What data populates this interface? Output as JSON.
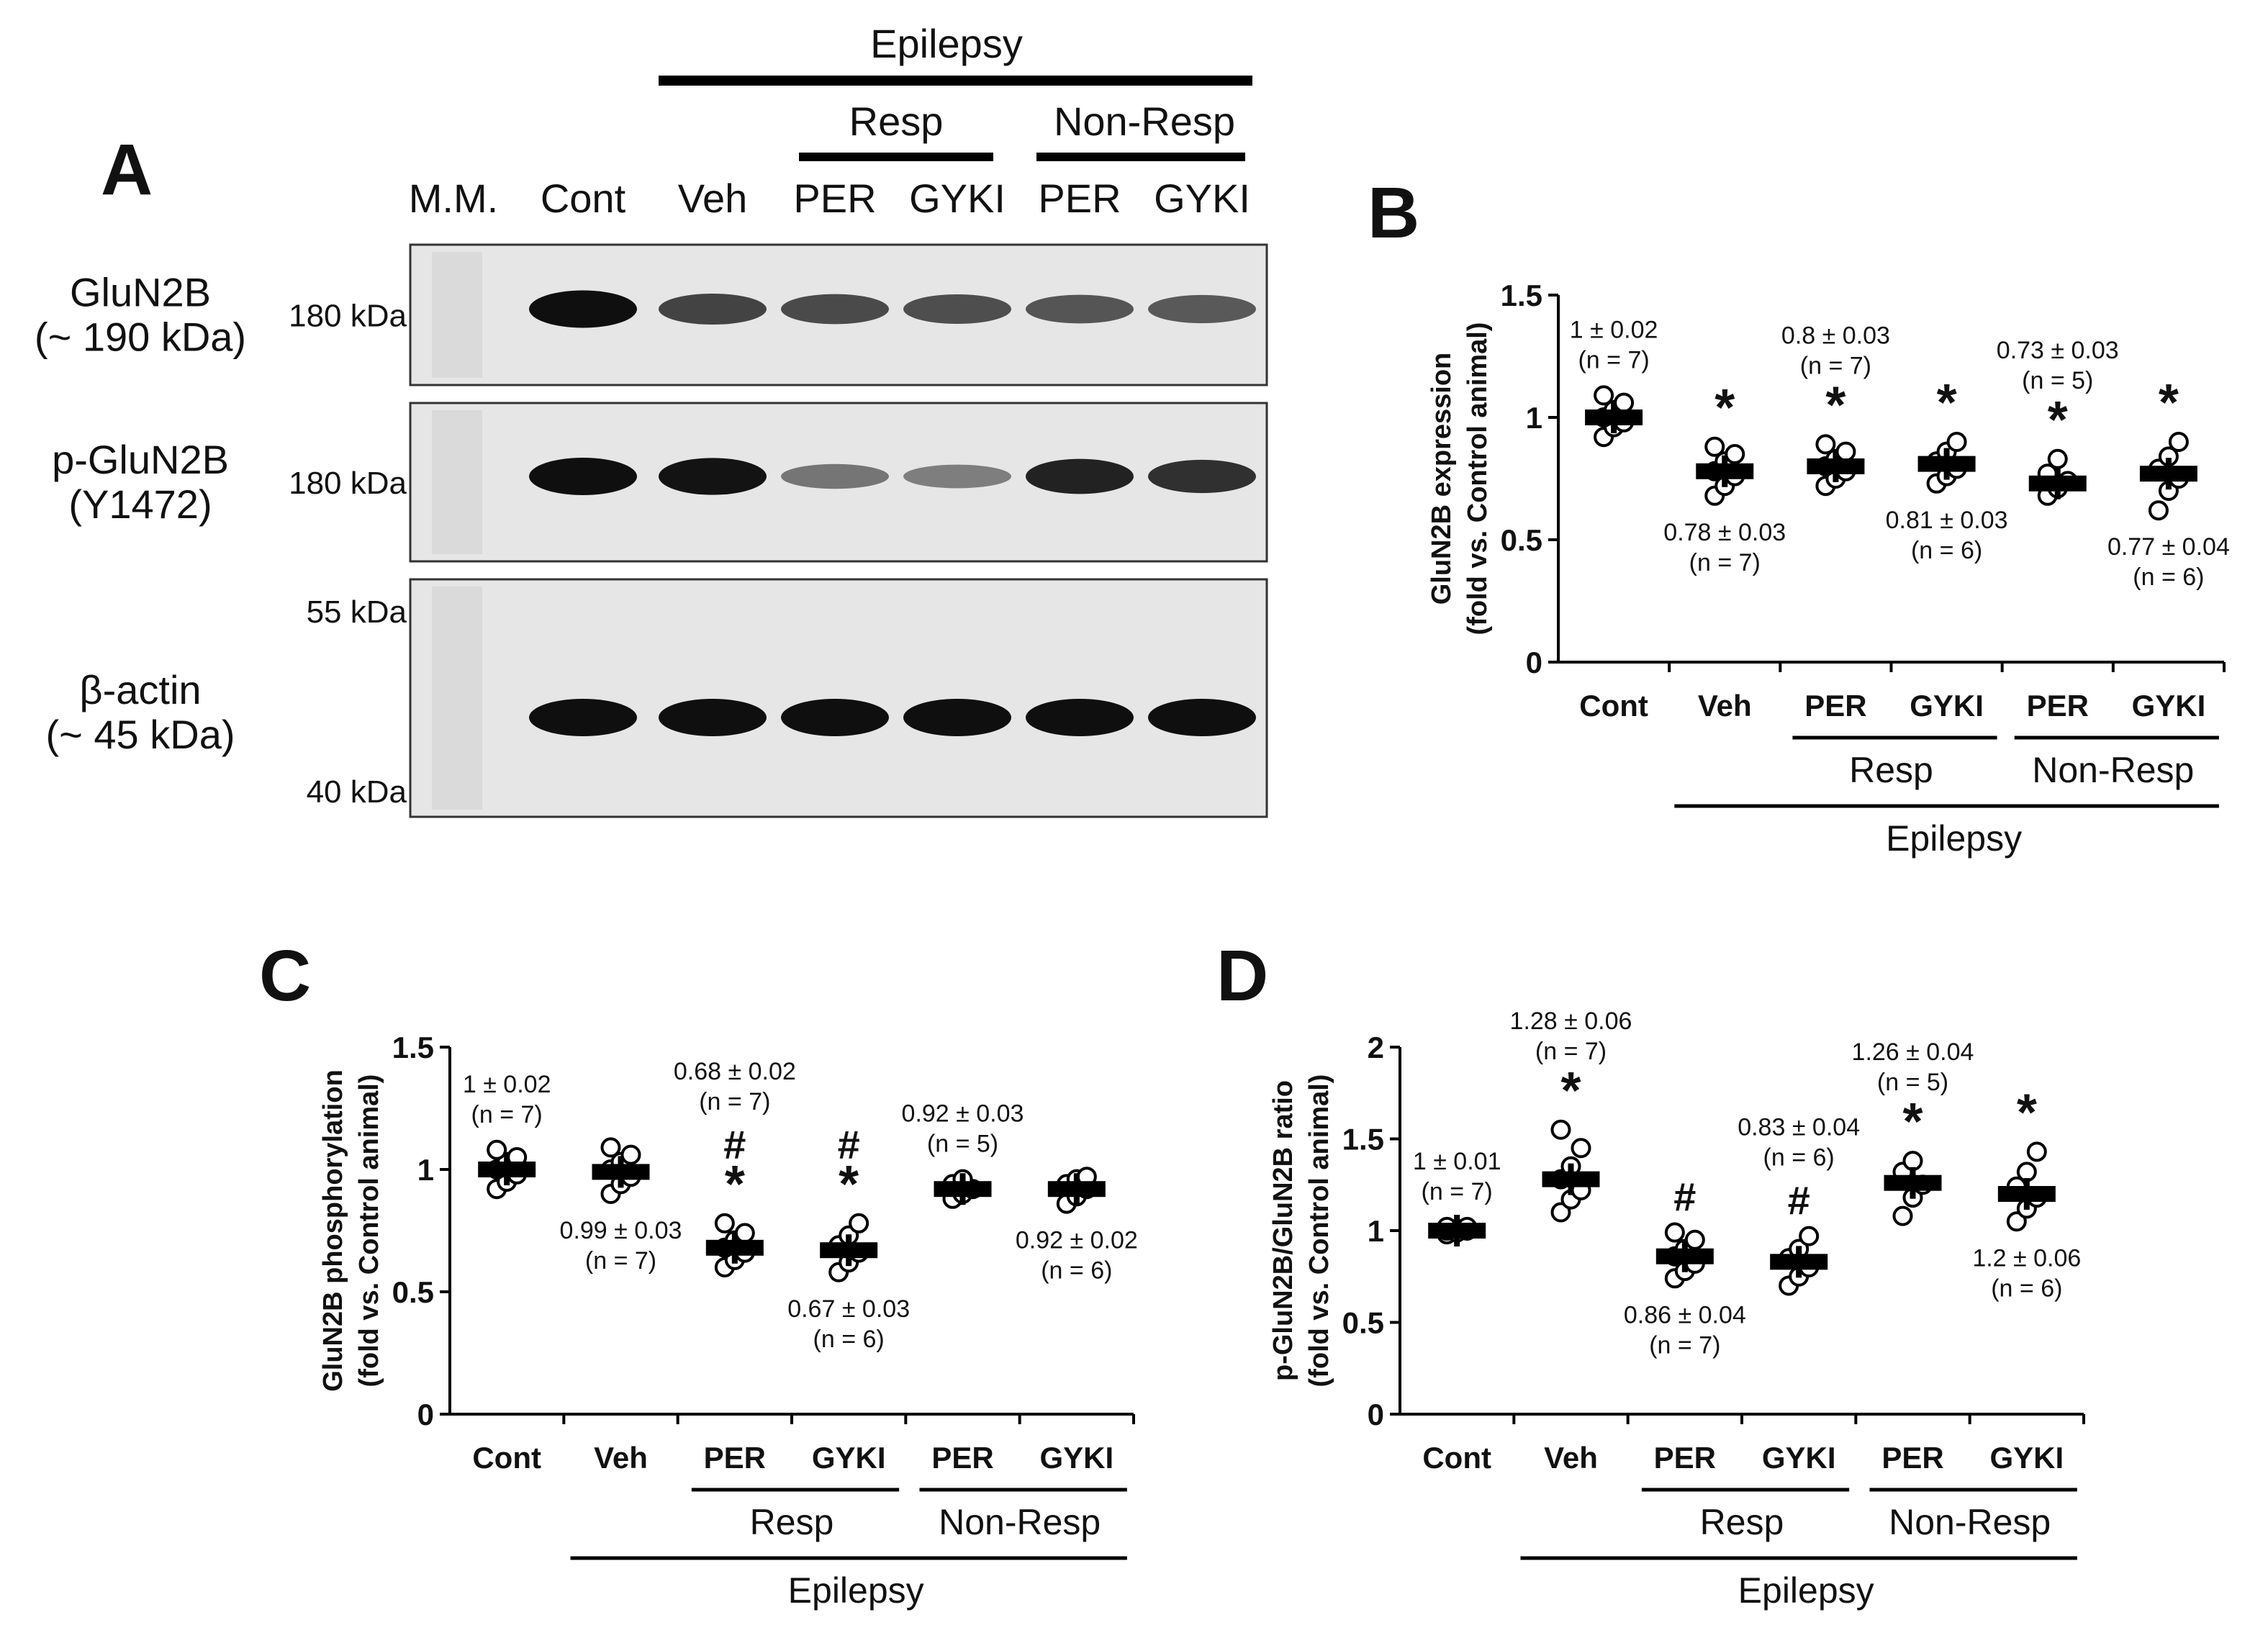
{
  "panel_letters": {
    "a": "A",
    "b": "B",
    "c": "C",
    "d": "D"
  },
  "blot": {
    "top_group": "Epilepsy",
    "subgroups": [
      "Resp",
      "Non-Resp"
    ],
    "lanes": [
      "M.M.",
      "Cont",
      "Veh",
      "PER",
      "GYKI",
      "PER",
      "GYKI"
    ],
    "rows": [
      {
        "name": "GluN2B",
        "sub": "(~ 190 kDa)",
        "markers": [
          "180 kDa"
        ],
        "intensities": [
          1.0,
          0.72,
          0.68,
          0.66,
          0.62,
          0.6
        ]
      },
      {
        "name": "p-GluN2B",
        "sub": "(Y1472)",
        "markers": [
          "180 kDa"
        ],
        "intensities": [
          1.0,
          0.98,
          0.45,
          0.4,
          0.9,
          0.82
        ]
      },
      {
        "name": "β-actin",
        "sub": "(~ 45 kDa)",
        "markers": [
          "55 kDa",
          "40 kDa"
        ],
        "intensities": [
          1.0,
          1.0,
          1.0,
          1.0,
          1.0,
          1.0
        ]
      }
    ]
  },
  "chart_data": [
    {
      "panel": "B",
      "type": "scatter",
      "ylabel": [
        "GluN2B expression",
        "(fold vs. Control animal)"
      ],
      "ylim": [
        0,
        1.5
      ],
      "yticks": [
        "0",
        "0.5",
        "1",
        "1.5"
      ],
      "categories": [
        "Cont",
        "Veh",
        "PER",
        "GYKI",
        "PER",
        "GYKI"
      ],
      "groups": {
        "subgroups": [
          "Resp",
          "Non-Resp"
        ],
        "top": "Epilepsy"
      },
      "means": [
        1.0,
        0.78,
        0.8,
        0.81,
        0.73,
        0.77
      ],
      "points": [
        [
          0.92,
          0.96,
          0.98,
          1.0,
          1.03,
          1.06,
          1.09
        ],
        [
          0.68,
          0.72,
          0.76,
          0.78,
          0.82,
          0.85,
          0.88
        ],
        [
          0.72,
          0.75,
          0.78,
          0.8,
          0.83,
          0.86,
          0.89
        ],
        [
          0.73,
          0.76,
          0.79,
          0.82,
          0.86,
          0.9
        ],
        [
          0.68,
          0.71,
          0.74,
          0.77,
          0.83
        ],
        [
          0.62,
          0.7,
          0.75,
          0.79,
          0.84,
          0.9
        ]
      ],
      "value_labels": [
        "1 ± 0.02",
        "0.78 ± 0.03",
        "0.8 ± 0.03",
        "0.81 ± 0.03",
        "0.73 ± 0.03",
        "0.77 ± 0.04"
      ],
      "n_labels": [
        "(n = 7)",
        "(n = 7)",
        "(n = 7)",
        "(n = 6)",
        "(n = 5)",
        "(n = 6)"
      ],
      "label_pos": [
        "above",
        "below",
        "above",
        "below",
        "above",
        "below"
      ],
      "marks": [
        "",
        "*",
        "*",
        "*",
        "*",
        "*"
      ]
    },
    {
      "panel": "C",
      "type": "scatter",
      "ylabel": [
        "GluN2B phosphorylation",
        "(fold vs. Control animal)"
      ],
      "ylim": [
        0,
        1.5
      ],
      "yticks": [
        "0",
        "0.5",
        "1",
        "1.5"
      ],
      "categories": [
        "Cont",
        "Veh",
        "PER",
        "GYKI",
        "PER",
        "GYKI"
      ],
      "groups": {
        "subgroups": [
          "Resp",
          "Non-Resp"
        ],
        "top": "Epilepsy"
      },
      "means": [
        1.0,
        0.99,
        0.68,
        0.67,
        0.92,
        0.92
      ],
      "points": [
        [
          0.92,
          0.95,
          0.98,
          1.0,
          1.03,
          1.05,
          1.08
        ],
        [
          0.9,
          0.94,
          0.97,
          1.0,
          1.03,
          1.06,
          1.09
        ],
        [
          0.6,
          0.63,
          0.66,
          0.68,
          0.71,
          0.74,
          0.78
        ],
        [
          0.58,
          0.62,
          0.66,
          0.69,
          0.73,
          0.78
        ],
        [
          0.88,
          0.9,
          0.92,
          0.94,
          0.96
        ],
        [
          0.86,
          0.89,
          0.92,
          0.94,
          0.96,
          0.97
        ]
      ],
      "value_labels": [
        "1 ± 0.02",
        "0.99 ± 0.03",
        "0.68 ± 0.02",
        "0.67 ± 0.03",
        "0.92 ± 0.03",
        "0.92 ± 0.02"
      ],
      "n_labels": [
        "(n = 7)",
        "(n = 7)",
        "(n = 7)",
        "(n = 6)",
        "(n = 5)",
        "(n = 6)"
      ],
      "label_pos": [
        "above",
        "below",
        "above",
        "below",
        "above",
        "below"
      ],
      "marks": [
        "",
        "",
        "#\n*",
        "#\n*",
        "",
        ""
      ]
    },
    {
      "panel": "D",
      "type": "scatter",
      "ylabel": [
        "p-GluN2B/GluN2B ratio",
        "(fold vs. Control animal)"
      ],
      "ylim": [
        0,
        2
      ],
      "yticks": [
        "0",
        "0.5",
        "1",
        "1.5",
        "2"
      ],
      "categories": [
        "Cont",
        "Veh",
        "PER",
        "GYKI",
        "PER",
        "GYKI"
      ],
      "groups": {
        "subgroups": [
          "Resp",
          "Non-Resp"
        ],
        "top": "Epilepsy"
      },
      "means": [
        1.0,
        1.28,
        0.86,
        0.83,
        1.26,
        1.2
      ],
      "points": [
        [
          0.98,
          0.99,
          1.0,
          1.0,
          1.01,
          1.02,
          1.02
        ],
        [
          1.1,
          1.17,
          1.22,
          1.28,
          1.35,
          1.45,
          1.55
        ],
        [
          0.74,
          0.78,
          0.82,
          0.86,
          0.9,
          0.95,
          0.99
        ],
        [
          0.7,
          0.75,
          0.8,
          0.85,
          0.9,
          0.97
        ],
        [
          1.08,
          1.18,
          1.25,
          1.32,
          1.38
        ],
        [
          1.05,
          1.12,
          1.18,
          1.24,
          1.32,
          1.43
        ]
      ],
      "value_labels": [
        "1 ± 0.01",
        "1.28 ± 0.06",
        "0.86 ± 0.04",
        "0.83 ± 0.04",
        "1.26 ± 0.04",
        "1.2 ± 0.06"
      ],
      "n_labels": [
        "(n = 7)",
        "(n = 7)",
        "(n = 7)",
        "(n = 6)",
        "(n = 5)",
        "(n = 6)"
      ],
      "label_pos": [
        "above",
        "above",
        "below",
        "above",
        "above",
        "below"
      ],
      "marks": [
        "",
        "*",
        "#",
        "#",
        "*",
        "*"
      ]
    }
  ]
}
